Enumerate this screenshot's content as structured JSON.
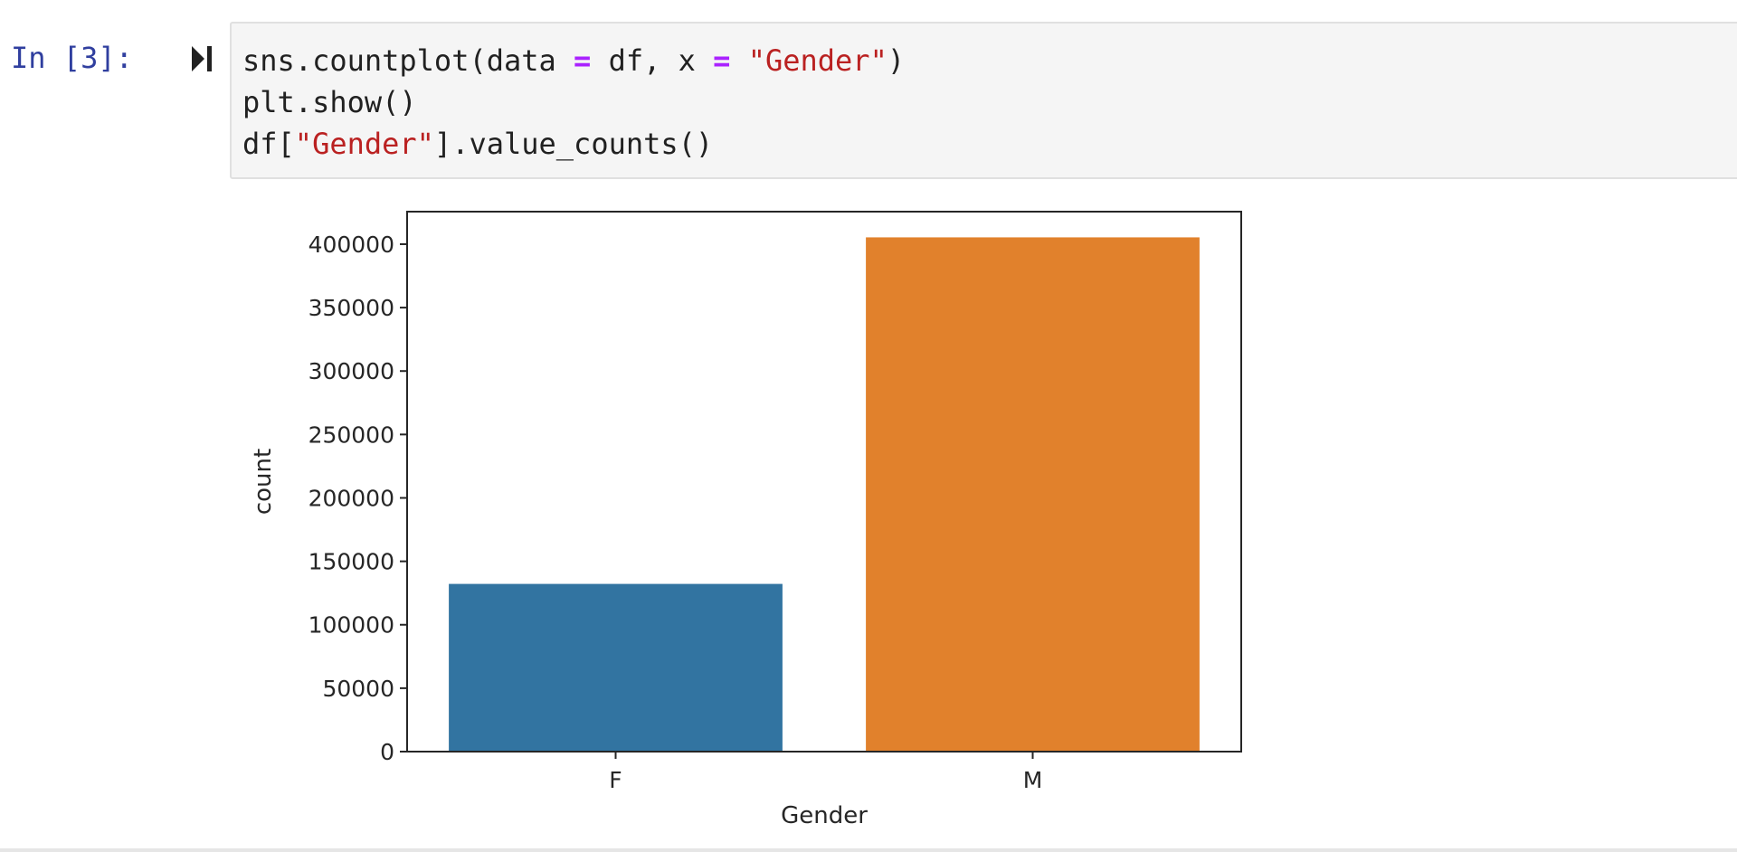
{
  "cell": {
    "prompt": "In [3]:",
    "run_icon": "run-cell-icon",
    "code_lines": [
      [
        {
          "t": "sns.countplot(data ",
          "c": "plain"
        },
        {
          "t": "=",
          "c": "op"
        },
        {
          "t": " df, x ",
          "c": "plain"
        },
        {
          "t": "=",
          "c": "op"
        },
        {
          "t": " ",
          "c": "plain"
        },
        {
          "t": "\"Gender\"",
          "c": "str"
        },
        {
          "t": ")",
          "c": "plain"
        }
      ],
      [
        {
          "t": "plt.show()",
          "c": "plain"
        }
      ],
      [
        {
          "t": "df[",
          "c": "plain"
        },
        {
          "t": "\"Gender\"",
          "c": "str"
        },
        {
          "t": "].value_counts()",
          "c": "plain"
        }
      ]
    ]
  },
  "chart_data": {
    "type": "bar",
    "categories": [
      "F",
      "M"
    ],
    "values": [
      132197,
      405380
    ],
    "colors": [
      "#3274a1",
      "#e1812c"
    ],
    "title": "",
    "xlabel": "Gender",
    "ylabel": "count",
    "ylim": [
      0,
      425650
    ],
    "yticks": [
      0,
      50000,
      100000,
      150000,
      200000,
      250000,
      300000,
      350000,
      400000
    ],
    "ytick_labels": [
      "0",
      "50000",
      "100000",
      "150000",
      "200000",
      "250000",
      "300000",
      "350000",
      "400000"
    ],
    "grid": false,
    "legend": "none"
  }
}
